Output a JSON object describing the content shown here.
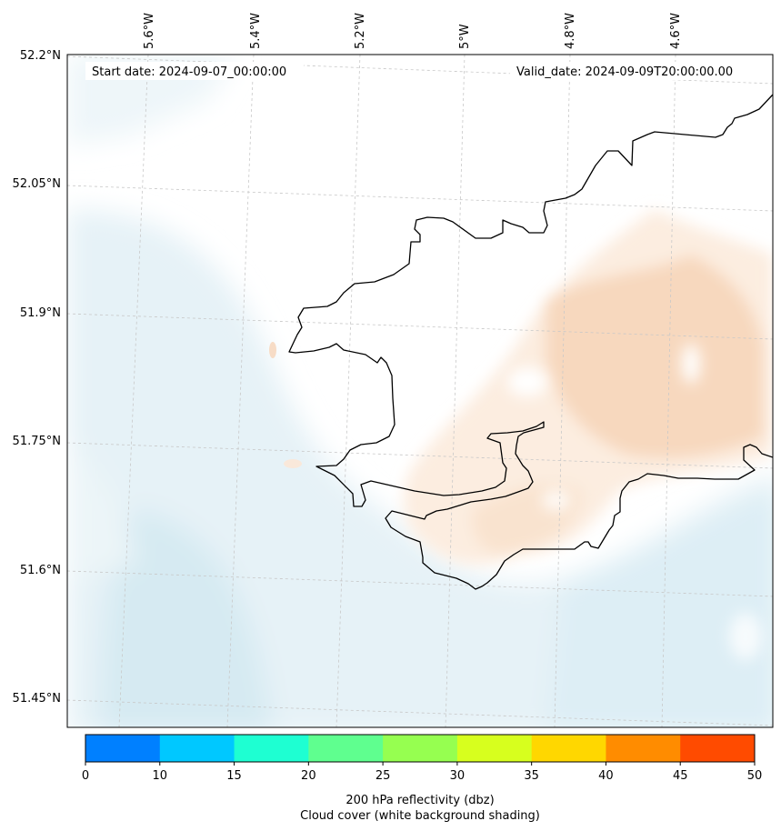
{
  "header": {
    "start_date": "Start date: 2024-09-07_00:00:00",
    "valid_date": "Valid_date: 2024-09-09T20:00:00.00"
  },
  "longitude_ticks": [
    "5.6°W",
    "5.4°W",
    "5.2°W",
    "5°W",
    "4.8°W",
    "4.6°W"
  ],
  "latitude_ticks": [
    "52.2°N",
    "52.05°N",
    "51.9°N",
    "51.75°N",
    "51.6°N",
    "51.45°N"
  ],
  "colorbar": {
    "ticks": [
      "0",
      "10",
      "15",
      "20",
      "25",
      "30",
      "35",
      "40",
      "45",
      "50"
    ],
    "colors": [
      "#0080ff",
      "#00c8ff",
      "#1effd2",
      "#5fff8f",
      "#96ff50",
      "#d7ff1e",
      "#ffd700",
      "#ff8c00",
      "#ff4b00"
    ],
    "label_line1": "200 hPa reflectivity (dbz)",
    "label_line2": "Cloud cover (white background shading)"
  },
  "colors": {
    "coastline": "#000000",
    "sea_shade": "#e3f1f6",
    "cloud_shade": "#f8dcc4",
    "gridline": "#c8c8c8"
  }
}
